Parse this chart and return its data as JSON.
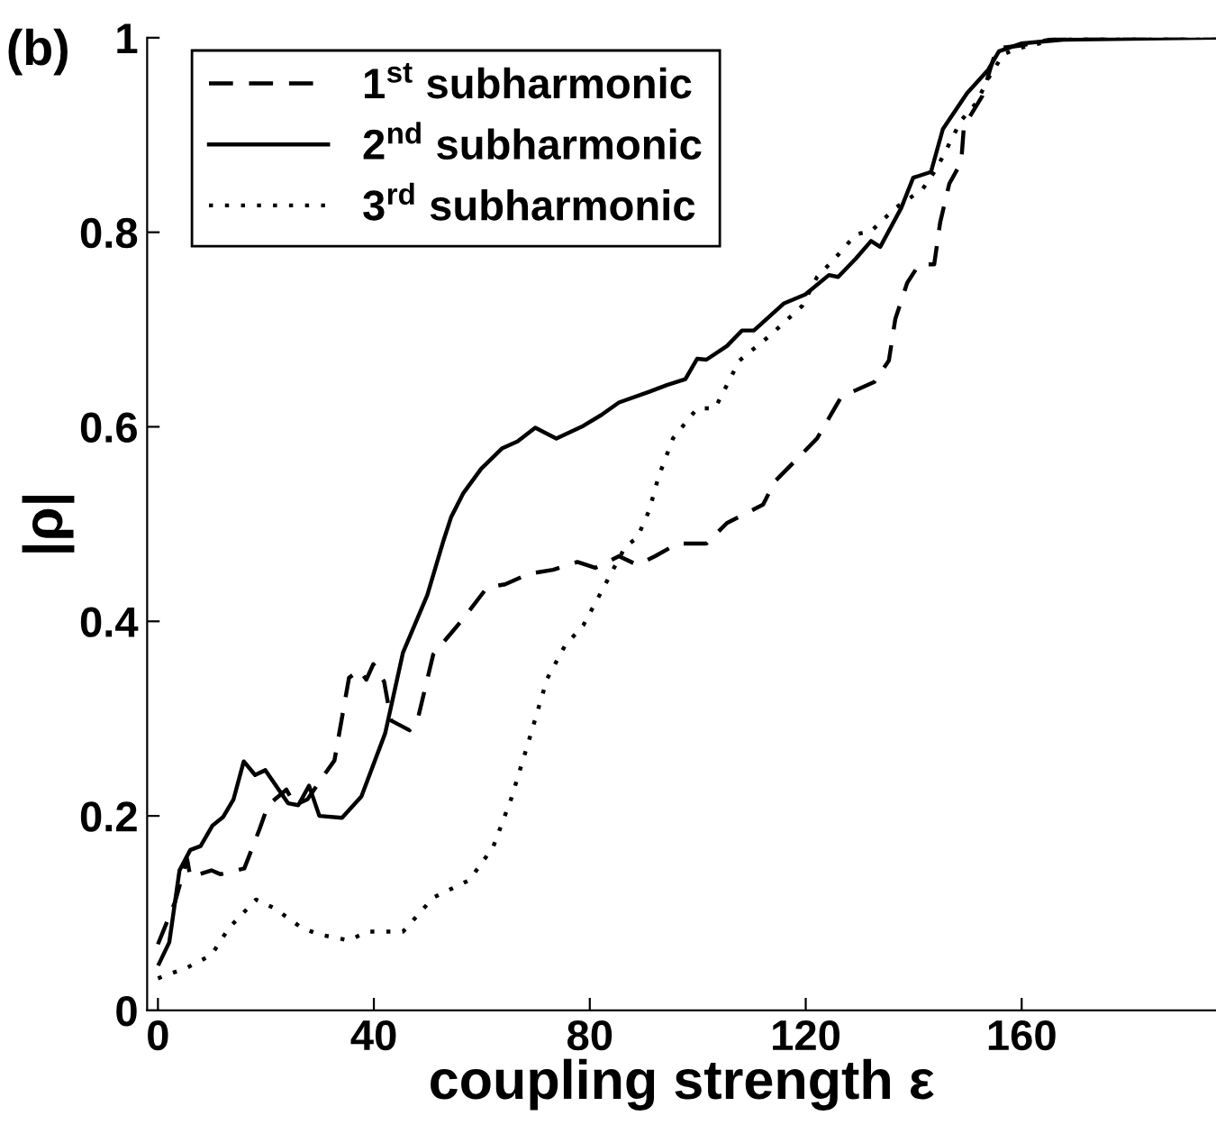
{
  "chart_data": {
    "type": "line",
    "xlabel": "coupling strength ε",
    "ylabel": "|ρ|",
    "annotations": [
      "(b)"
    ],
    "xlim": [
      -2,
      196
    ],
    "ylim": [
      0,
      1
    ],
    "xticks": [
      0,
      40,
      80,
      120,
      160
    ],
    "yticks": [
      0,
      0.2,
      0.4,
      0.6,
      0.8,
      1
    ],
    "grid": false,
    "legend": "top left",
    "marker": "none",
    "series": [
      {
        "name": "1$^{st}$ subharmonic",
        "color": "#000000",
        "line_style": "dashed",
        "x": [
          0,
          3.2,
          5.4,
          6,
          9.9,
          11.6,
          16,
          18.8,
          20.4,
          23.8,
          25.4,
          27.7,
          30.4,
          32.7,
          35.4,
          37.4,
          38.6,
          39.9,
          41.9,
          43.2,
          46.6,
          48.2,
          51,
          56.6,
          61,
          64.3,
          68.8,
          73.2,
          77.7,
          81,
          85.4,
          88.8,
          92.1,
          96.3,
          101.6,
          105.4,
          112.1,
          114.3,
          117.7,
          122.1,
          126.6,
          132.7,
          135.4,
          136.6,
          138.8,
          141,
          143.8,
          144.9,
          146.6,
          148.8,
          149.3,
          152.7,
          154.3,
          155.4,
          159.9,
          167,
          196
        ],
        "values": [
          0.068,
          0.112,
          0.156,
          0.137,
          0.144,
          0.14,
          0.146,
          0.186,
          0.211,
          0.227,
          0.211,
          0.217,
          0.239,
          0.257,
          0.342,
          0.35,
          0.34,
          0.356,
          0.338,
          0.298,
          0.288,
          0.301,
          0.366,
          0.403,
          0.435,
          0.438,
          0.449,
          0.453,
          0.461,
          0.455,
          0.467,
          0.458,
          0.467,
          0.48,
          0.48,
          0.501,
          0.52,
          0.544,
          0.563,
          0.588,
          0.631,
          0.646,
          0.668,
          0.711,
          0.748,
          0.767,
          0.767,
          0.81,
          0.85,
          0.872,
          0.909,
          0.94,
          0.97,
          0.989,
          0.992,
          1.0,
          1.0
        ]
      },
      {
        "name": "2$^{nd}$ subharmonic",
        "color": "#000000",
        "line_style": "solid",
        "x": [
          0.2,
          2.1,
          4,
          6,
          7.9,
          10.1,
          12.1,
          14,
          15.9,
          18,
          19.9,
          24.1,
          26,
          28,
          29.9,
          34.1,
          37.7,
          42.1,
          45.4,
          49.9,
          52.9,
          54.3,
          56.6,
          59.9,
          63.8,
          66.6,
          69.9,
          73.8,
          78.8,
          82.1,
          85.4,
          91,
          94.3,
          97.7,
          99.9,
          101.6,
          105.4,
          108.2,
          110.4,
          116,
          119.9,
          124.3,
          126,
          129.3,
          132.1,
          133.8,
          137.7,
          139.9,
          143.2,
          145.4,
          149.9,
          153.8,
          155.8,
          159.9,
          167.7,
          196
        ],
        "values": [
          0.048,
          0.07,
          0.144,
          0.165,
          0.169,
          0.19,
          0.199,
          0.217,
          0.256,
          0.242,
          0.247,
          0.213,
          0.211,
          0.231,
          0.2,
          0.198,
          0.22,
          0.285,
          0.368,
          0.427,
          0.483,
          0.507,
          0.532,
          0.557,
          0.578,
          0.585,
          0.599,
          0.588,
          0.601,
          0.612,
          0.625,
          0.636,
          0.643,
          0.649,
          0.67,
          0.669,
          0.683,
          0.699,
          0.699,
          0.727,
          0.736,
          0.756,
          0.754,
          0.773,
          0.791,
          0.785,
          0.825,
          0.856,
          0.862,
          0.906,
          0.943,
          0.967,
          0.986,
          0.994,
          0.998,
          1.0
        ]
      },
      {
        "name": "3$^{rd}$ subharmonic",
        "color": "#000000",
        "line_style": "dotted",
        "x": [
          0,
          5.4,
          9.9,
          13.2,
          18.2,
          21.6,
          26.6,
          29.9,
          35.4,
          38.8,
          45.4,
          51,
          57.7,
          62.1,
          65.4,
          68.8,
          72.1,
          75.4,
          78.8,
          82.1,
          86.6,
          88.8,
          91,
          92.7,
          95.4,
          99.9,
          103.2,
          107.7,
          113.2,
          119.3,
          122.1,
          125.4,
          129.3,
          132.1,
          136.6,
          141.6,
          144.3,
          148.8,
          151.6,
          153.8,
          156.6,
          159.3,
          167.7,
          196
        ],
        "values": [
          0.033,
          0.044,
          0.057,
          0.085,
          0.114,
          0.105,
          0.085,
          0.078,
          0.072,
          0.081,
          0.081,
          0.116,
          0.134,
          0.168,
          0.217,
          0.279,
          0.341,
          0.375,
          0.396,
          0.43,
          0.477,
          0.486,
          0.514,
          0.548,
          0.588,
          0.619,
          0.619,
          0.668,
          0.693,
          0.724,
          0.754,
          0.773,
          0.798,
          0.801,
          0.825,
          0.844,
          0.866,
          0.915,
          0.933,
          0.958,
          0.983,
          0.989,
          1.0,
          1.0
        ]
      }
    ]
  }
}
